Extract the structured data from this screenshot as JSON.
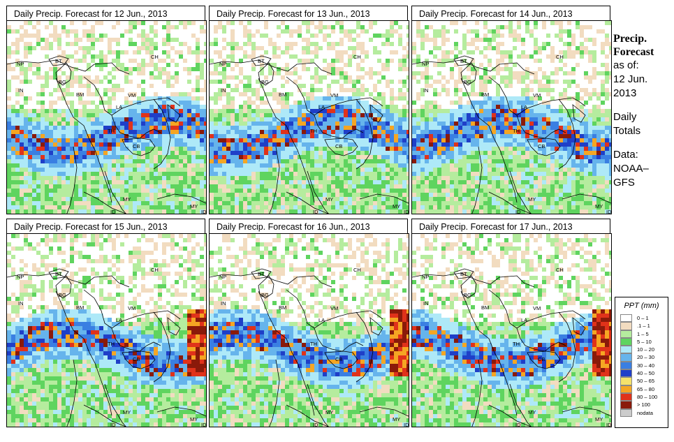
{
  "panels": [
    {
      "title": "Daily Precip. Forecast for  12 Jun., 2013",
      "seed": 11
    },
    {
      "title": "Daily Precip. Forecast for  13 Jun., 2013",
      "seed": 23
    },
    {
      "title": "Daily Precip. Forecast for  14 Jun., 2013",
      "seed": 37
    },
    {
      "title": "Daily Precip. Forecast for  15 Jun., 2013",
      "seed": 41
    },
    {
      "title": "Daily Precip. Forecast for  16 Jun., 2013",
      "seed": 53
    },
    {
      "title": "Daily Precip. Forecast for  17 Jun., 2013",
      "seed": 67
    }
  ],
  "map_labels": [
    "NP",
    "BT",
    "BG",
    "IN",
    "BM",
    "CH",
    "VM",
    "LA",
    "TH",
    "CB",
    "MY",
    "ID",
    "MY",
    "ID"
  ],
  "sidebar": {
    "title_line1": "Precip.",
    "title_line2": "Forecast",
    "asof": "as of:",
    "date_line1": "12 Jun.",
    "date_line2": "2013",
    "totals1": "Daily",
    "totals2": "Totals",
    "data1": "Data:",
    "data2": "NOAA–",
    "data3": "GFS"
  },
  "legend": {
    "title": "PPT (mm)",
    "items": [
      {
        "label": "0 – 1",
        "color": "#ffffff"
      },
      {
        "label": ".1 – 1",
        "color": "#f2dcc0"
      },
      {
        "label": "1 – 5",
        "color": "#b5ec9e"
      },
      {
        "label": "5 – 10",
        "color": "#5fd45f"
      },
      {
        "label": "10 – 20",
        "color": "#aee9f8"
      },
      {
        "label": "20 – 30",
        "color": "#66b4ec"
      },
      {
        "label": "30 – 40",
        "color": "#3a7fe2"
      },
      {
        "label": "40 – 50",
        "color": "#1f3fc8"
      },
      {
        "label": "50 – 65",
        "color": "#f5e26b"
      },
      {
        "label": "65 – 80",
        "color": "#f5a623"
      },
      {
        "label": "80 – 100",
        "color": "#e0321a"
      },
      {
        "label": "> 100",
        "color": "#8a1a0a"
      },
      {
        "label": "nodata",
        "color": "#cccccc"
      }
    ]
  }
}
